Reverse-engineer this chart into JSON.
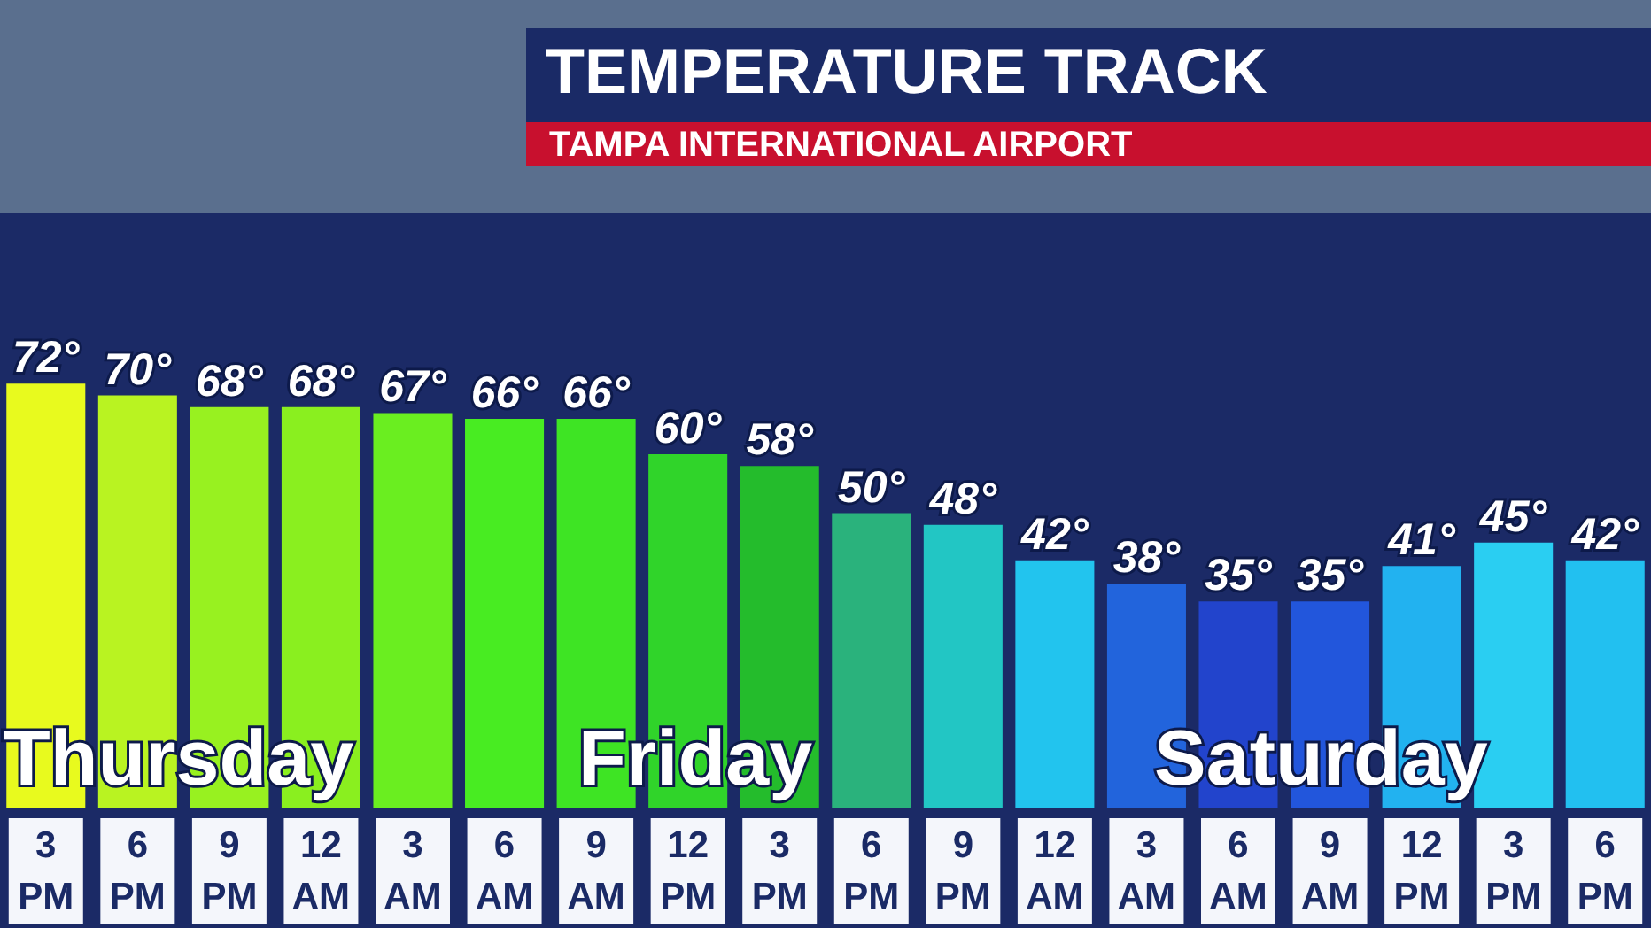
{
  "chart_data": {
    "type": "bar",
    "title": "TEMPERATURE TRACK",
    "subtitle": "TAMPA INTERNATIONAL AIRPORT",
    "categories": [
      "3 PM",
      "6 PM",
      "9 PM",
      "12 AM",
      "3 AM",
      "6 AM",
      "9 AM",
      "12 PM",
      "3 PM",
      "6 PM",
      "9 PM",
      "12 AM",
      "3 AM",
      "6 AM",
      "9 AM",
      "12 PM",
      "3 PM",
      "6 PM"
    ],
    "values": [
      72,
      70,
      68,
      68,
      67,
      66,
      66,
      60,
      58,
      50,
      48,
      42,
      38,
      35,
      35,
      41,
      45,
      42
    ],
    "value_labels": [
      "72°",
      "70°",
      "68°",
      "68°",
      "67°",
      "66°",
      "66°",
      "60°",
      "58°",
      "50°",
      "48°",
      "42°",
      "38°",
      "35°",
      "35°",
      "41°",
      "45°",
      "42°"
    ],
    "colors": [
      "#e8fa1e",
      "#b9f321",
      "#98f120",
      "#8aef1f",
      "#6aee20",
      "#48ec22",
      "#3ee424",
      "#30d42a",
      "#24bc2c",
      "#2ab27c",
      "#22c6c4",
      "#22c4ee",
      "#2264dc",
      "#2244cc",
      "#2256dc",
      "#22b2f0",
      "#2acef2",
      "#22c0f0"
    ],
    "tick_labels": "x",
    "annotations": [
      "Thursday",
      "Friday",
      "Saturday"
    ]
  }
}
